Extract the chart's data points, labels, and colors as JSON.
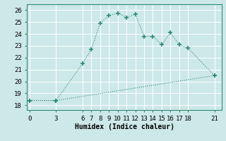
{
  "title": "",
  "xlabel": "Humidex (Indice chaleur)",
  "line1_x": [
    0,
    3,
    6,
    7,
    8,
    9,
    10,
    11,
    12,
    13,
    14,
    15,
    16,
    17,
    18,
    21
  ],
  "line1_y": [
    18.4,
    18.4,
    21.5,
    22.7,
    24.9,
    25.55,
    25.75,
    25.4,
    25.65,
    23.8,
    23.8,
    23.1,
    24.1,
    23.1,
    22.8,
    20.5
  ],
  "line2_x": [
    0,
    3,
    21
  ],
  "line2_y": [
    18.4,
    18.4,
    20.5
  ],
  "xticks": [
    0,
    3,
    6,
    7,
    8,
    9,
    10,
    11,
    12,
    13,
    14,
    15,
    16,
    17,
    18,
    21
  ],
  "yticks": [
    18,
    19,
    20,
    21,
    22,
    23,
    24,
    25,
    26
  ],
  "ylim": [
    17.6,
    26.5
  ],
  "xlim": [
    -0.3,
    21.8
  ],
  "line_color": "#2e8b74",
  "marker": "+",
  "markersize": 4,
  "markeredgewidth": 1.2,
  "bg_color": "#cde8e8",
  "grid_color": "#b0d4d4",
  "label_fontsize": 7,
  "tick_fontsize": 6.5
}
